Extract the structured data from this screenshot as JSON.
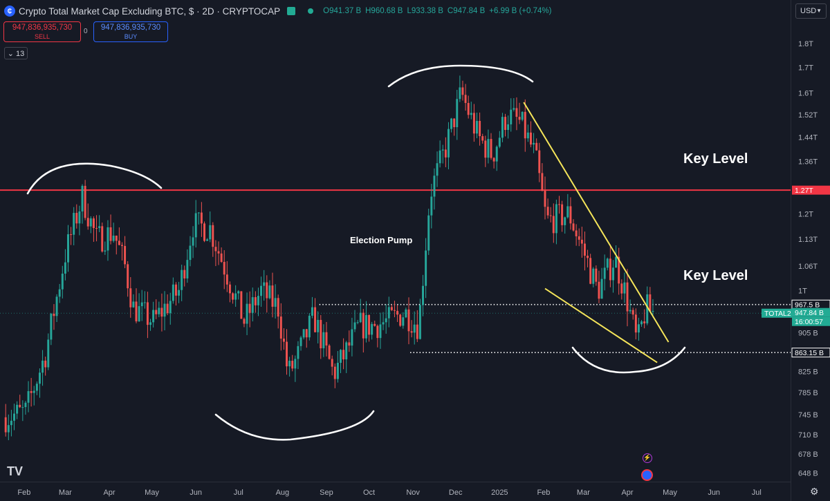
{
  "header": {
    "title": "Crypto Total Market Cap Excluding BTC, $ · 2D · CRYPTOCAP",
    "open": "O941.37 B",
    "high": "H960.68 B",
    "low": "L933.38 B",
    "close": "C947.84 B",
    "change": "+6.99 B (+0.74%)"
  },
  "trade": {
    "sell_price": "947,836,935,730",
    "sell_label": "SELL",
    "spread": "0",
    "buy_price": "947,836,935,730",
    "buy_label": "BUY"
  },
  "indicators_count": "13",
  "currency": "USD",
  "annotations": {
    "key_level_top": "Key Level",
    "key_level_bottom": "Key Level",
    "election": "Election Pump"
  },
  "colors": {
    "background": "#161a25",
    "up": "#26a69a",
    "down": "#ef5350",
    "key_level_line": "#f23645",
    "wedge": "#f5e55a"
  },
  "chart_data": {
    "type": "candlestick",
    "title": "Crypto Total Market Cap Excluding BTC",
    "y_scale": "log",
    "ylim": [
      635,
      1900
    ],
    "y_unit": "B",
    "y_ticks": [
      {
        "label": "1.8T",
        "value": 1800
      },
      {
        "label": "1.7T",
        "value": 1700
      },
      {
        "label": "1.6T",
        "value": 1600
      },
      {
        "label": "1.52T",
        "value": 1520
      },
      {
        "label": "1.44T",
        "value": 1440
      },
      {
        "label": "1.36T",
        "value": 1360
      },
      {
        "label": "1.2T",
        "value": 1200
      },
      {
        "label": "1.13T",
        "value": 1130
      },
      {
        "label": "1.06T",
        "value": 1060
      },
      {
        "label": "1T",
        "value": 1000
      },
      {
        "label": "905 B",
        "value": 905
      },
      {
        "label": "825 B",
        "value": 825
      },
      {
        "label": "785 B",
        "value": 785
      },
      {
        "label": "745 B",
        "value": 745
      },
      {
        "label": "710 B",
        "value": 710
      },
      {
        "label": "678 B",
        "value": 678
      },
      {
        "label": "648 B",
        "value": 648
      }
    ],
    "x_ticks": [
      {
        "label": "Feb",
        "date": "2024-02-01"
      },
      {
        "label": "Mar",
        "date": "2024-03-01"
      },
      {
        "label": "Apr",
        "date": "2024-04-01"
      },
      {
        "label": "May",
        "date": "2024-05-01"
      },
      {
        "label": "Jun",
        "date": "2024-06-01"
      },
      {
        "label": "Jul",
        "date": "2024-07-01"
      },
      {
        "label": "Aug",
        "date": "2024-08-01"
      },
      {
        "label": "Sep",
        "date": "2024-09-01"
      },
      {
        "label": "Oct",
        "date": "2024-10-01"
      },
      {
        "label": "Nov",
        "date": "2024-11-01"
      },
      {
        "label": "Dec",
        "date": "2024-12-01"
      },
      {
        "label": "2025",
        "date": "2025-01-01"
      },
      {
        "label": "Feb",
        "date": "2025-02-01"
      },
      {
        "label": "Mar",
        "date": "2025-03-01"
      },
      {
        "label": "Apr",
        "date": "2025-04-01"
      },
      {
        "label": "May",
        "date": "2025-05-01"
      },
      {
        "label": "Jun",
        "date": "2025-06-01"
      },
      {
        "label": "Jul",
        "date": "2025-07-01"
      }
    ],
    "x_range": [
      "2024-01-15",
      "2025-07-25"
    ],
    "price_tags": [
      {
        "label": "1.27T",
        "value": 1270,
        "style": "key-level"
      },
      {
        "label": "967.5 B",
        "value": 967.5,
        "style": "outline"
      },
      {
        "label": "TOTAL2",
        "value": 947.84,
        "style": "symbol"
      },
      {
        "label": "947.84 B",
        "value": 947.84,
        "style": "last"
      },
      {
        "label": "16:00:57",
        "value": 947.84,
        "style": "countdown"
      },
      {
        "label": "863.15 B",
        "value": 863.15,
        "style": "outline"
      }
    ],
    "key_level": 1270,
    "dotted_levels": [
      {
        "value": 967.5,
        "from": "2024-08-27",
        "to": "2025-07-25"
      },
      {
        "value": 863.15,
        "from": "2024-10-30",
        "to": "2025-07-25"
      }
    ],
    "wedge_lines": [
      {
        "from": {
          "date": "2025-01-18",
          "value": 1565
        },
        "to": {
          "date": "2025-04-30",
          "value": 885
        }
      },
      {
        "from": {
          "date": "2025-02-02",
          "value": 1005
        },
        "to": {
          "date": "2025-04-22",
          "value": 843
        }
      }
    ],
    "anchor_points": [
      [
        "2024-01-19",
        740
      ],
      [
        "2024-02-02",
        750
      ],
      [
        "2024-02-16",
        860
      ],
      [
        "2024-03-01",
        1090
      ],
      [
        "2024-03-13",
        1250
      ],
      [
        "2024-03-23",
        1130
      ],
      [
        "2024-04-04",
        1150
      ],
      [
        "2024-04-12",
        1060
      ],
      [
        "2024-04-18",
        960
      ],
      [
        "2024-05-02",
        930
      ],
      [
        "2024-05-20",
        1000
      ],
      [
        "2024-05-30",
        1170
      ],
      [
        "2024-06-11",
        1160
      ],
      [
        "2024-06-23",
        1040
      ],
      [
        "2024-07-05",
        930
      ],
      [
        "2024-07-17",
        1000
      ],
      [
        "2024-07-29",
        960
      ],
      [
        "2024-08-05",
        820
      ],
      [
        "2024-08-11",
        850
      ],
      [
        "2024-08-23",
        940
      ],
      [
        "2024-09-06",
        820
      ],
      [
        "2024-09-14",
        860
      ],
      [
        "2024-09-24",
        920
      ],
      [
        "2024-10-04",
        920
      ],
      [
        "2024-10-14",
        930
      ],
      [
        "2024-10-26",
        950
      ],
      [
        "2024-11-05",
        920
      ],
      [
        "2024-11-13",
        1260
      ],
      [
        "2024-11-25",
        1420
      ],
      [
        "2024-12-05",
        1600
      ],
      [
        "2024-12-17",
        1440
      ],
      [
        "2024-12-27",
        1380
      ],
      [
        "2025-01-06",
        1520
      ],
      [
        "2025-01-16",
        1490
      ],
      [
        "2025-01-26",
        1380
      ],
      [
        "2025-02-03",
        1180
      ],
      [
        "2025-02-19",
        1200
      ],
      [
        "2025-03-03",
        1080
      ],
      [
        "2025-03-11",
        1000
      ],
      [
        "2025-03-23",
        1080
      ],
      [
        "2025-03-31",
        990
      ],
      [
        "2025-04-08",
        880
      ],
      [
        "2025-04-14",
        960
      ],
      [
        "2025-04-20",
        948
      ]
    ]
  }
}
